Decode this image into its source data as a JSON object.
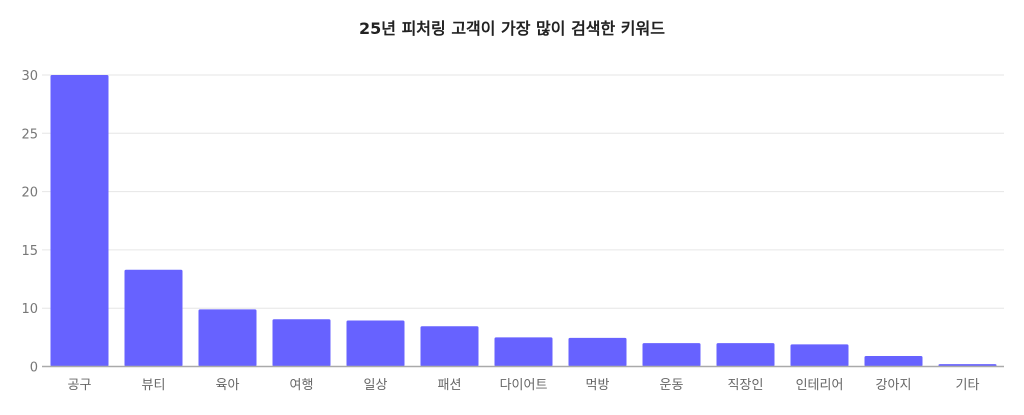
{
  "chart_data": {
    "type": "bar",
    "title": "25년 피처링 고객이 가장 많이 검색한 키워드",
    "xlabel": "",
    "ylabel": "",
    "categories": [
      "공구",
      "뷰티",
      "육아",
      "여행",
      "일상",
      "패션",
      "다이어트",
      "먹방",
      "운동",
      "직장인",
      "인테리어",
      "강아지",
      "기타"
    ],
    "values": [
      30,
      13.3,
      9.8,
      8.1,
      7.9,
      6.9,
      5.0,
      4.9,
      4.0,
      4.0,
      3.8,
      1.8,
      0.4
    ],
    "y_ticks": [
      0,
      10,
      15,
      20,
      25,
      30
    ],
    "ylim": [
      0,
      30
    ],
    "grid": true,
    "legend": "none",
    "bar_color": "#6762ff"
  }
}
